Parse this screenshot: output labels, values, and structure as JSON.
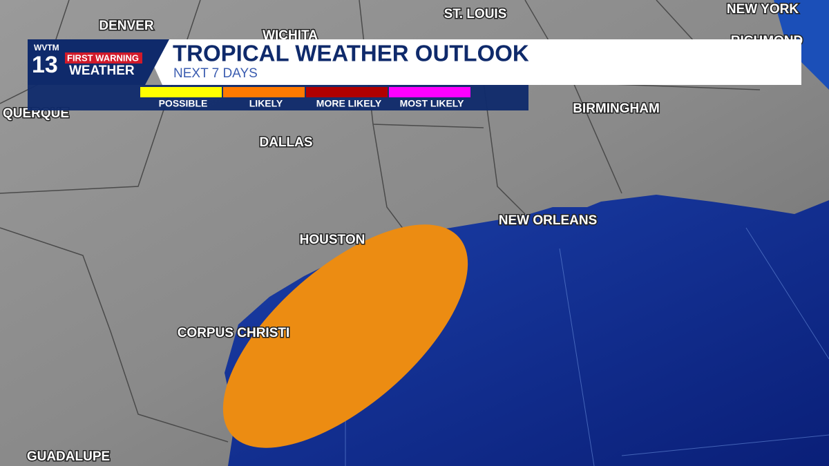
{
  "header": {
    "station": "WVTM",
    "channel": "13",
    "brand_top": "FIRST WARNING",
    "brand_bottom": "WEATHER",
    "title": "TROPICAL WEATHER OUTLOOK",
    "subtitle": "NEXT 7 DAYS"
  },
  "legend": [
    {
      "label": "POSSIBLE",
      "color": "#ffff00"
    },
    {
      "label": "LIKELY",
      "color": "#ff7a00"
    },
    {
      "label": "MORE LIKELY",
      "color": "#b00000"
    },
    {
      "label": "MOST LIKELY",
      "color": "#ff00ff"
    }
  ],
  "outlook_area": {
    "category": "LIKELY",
    "color": "#ec8c12"
  },
  "cities": [
    "DENVER",
    "WICHITA",
    "ST. LOUIS",
    "NEW YORK",
    "RICHMOND",
    "QUERQUE",
    "BIRMINGHAM",
    "DALLAS",
    "NEW ORLEANS",
    "HOUSTON",
    "CORPUS CHRISTI",
    "GUADALUPE"
  ]
}
